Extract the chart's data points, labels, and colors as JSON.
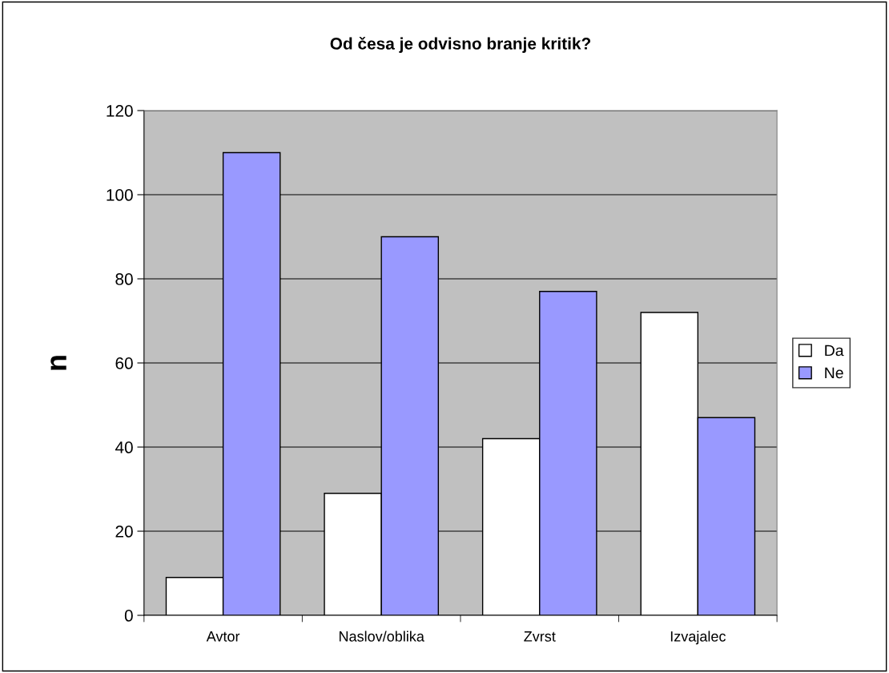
{
  "chart_data": {
    "type": "bar",
    "title": "Od česa je odvisno branje kritik?",
    "ylabel": "n",
    "categories": [
      "Avtor",
      "Naslov/oblika",
      "Zvrst",
      "Izvajalec"
    ],
    "series": [
      {
        "name": "Da",
        "color": "#ffffff",
        "values": [
          9,
          29,
          42,
          72
        ]
      },
      {
        "name": "Ne",
        "color": "#9999ff",
        "values": [
          110,
          90,
          77,
          47
        ]
      }
    ],
    "ylim": [
      0,
      120
    ],
    "yticks": [
      0,
      20,
      40,
      60,
      80,
      100,
      120
    ],
    "grid": "y",
    "legend": "right"
  }
}
